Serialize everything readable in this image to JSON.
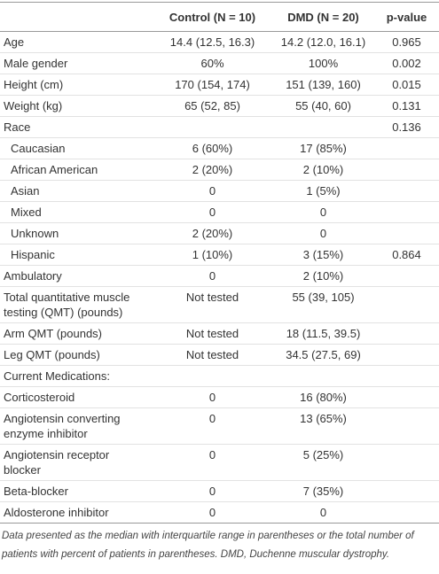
{
  "table": {
    "header": [
      "Control (N = 10)",
      "DMD (N = 20)",
      "p-value"
    ],
    "rows": [
      [
        "Age",
        "14.4 (12.5, 16.3)",
        "14.2 (12.0, 16.1)",
        "0.965"
      ],
      [
        "Male gender",
        "60%",
        "100%",
        "0.002"
      ],
      [
        "Height (cm)",
        "170 (154, 174)",
        "151 (139, 160)",
        "0.015"
      ],
      [
        "Weight (kg)",
        "65 (52, 85)",
        "55 (40, 60)",
        "0.131"
      ],
      [
        "Race",
        null,
        null,
        "0.136"
      ],
      [
        "Caucasian",
        "6 (60%)",
        "17 (85%)",
        null
      ],
      [
        "African American",
        "2 (20%)",
        "2 (10%)",
        null
      ],
      [
        "Asian",
        "0",
        "1 (5%)",
        null
      ],
      [
        "Mixed",
        "0",
        "0",
        null
      ],
      [
        "Unknown",
        "2 (20%)",
        "0",
        null
      ],
      [
        "Hispanic",
        "1 (10%)",
        "3 (15%)",
        "0.864"
      ],
      [
        "Ambulatory",
        "0",
        "2 (10%)",
        null
      ],
      [
        "Total quantitative muscle testing (QMT) (pounds)",
        "Not tested",
        "55 (39, 105)",
        null
      ],
      [
        "Arm QMT (pounds)",
        "Not tested",
        "18 (11.5, 39.5)",
        null
      ],
      [
        "Leg QMT (pounds)",
        "Not tested",
        "34.5 (27.5, 69)",
        null
      ],
      [
        "Current Medications:",
        null,
        null,
        null
      ],
      [
        "Corticosteroid",
        "0",
        "16 (80%)",
        null
      ],
      [
        "Angiotensin converting enzyme inhibitor",
        "0",
        "13 (65%)",
        null
      ],
      [
        "Angiotensin receptor blocker",
        "0",
        "5 (25%)",
        null
      ],
      [
        "Beta-blocker",
        "0",
        "7 (35%)",
        null
      ],
      [
        "Aldosterone inhibitor",
        "0",
        "0",
        null
      ]
    ],
    "footnote": "Data presented as the median with interquartile range in parentheses or the total number of patients with percent of patients in parentheses. DMD, Duchenne muscular dystrophy."
  }
}
